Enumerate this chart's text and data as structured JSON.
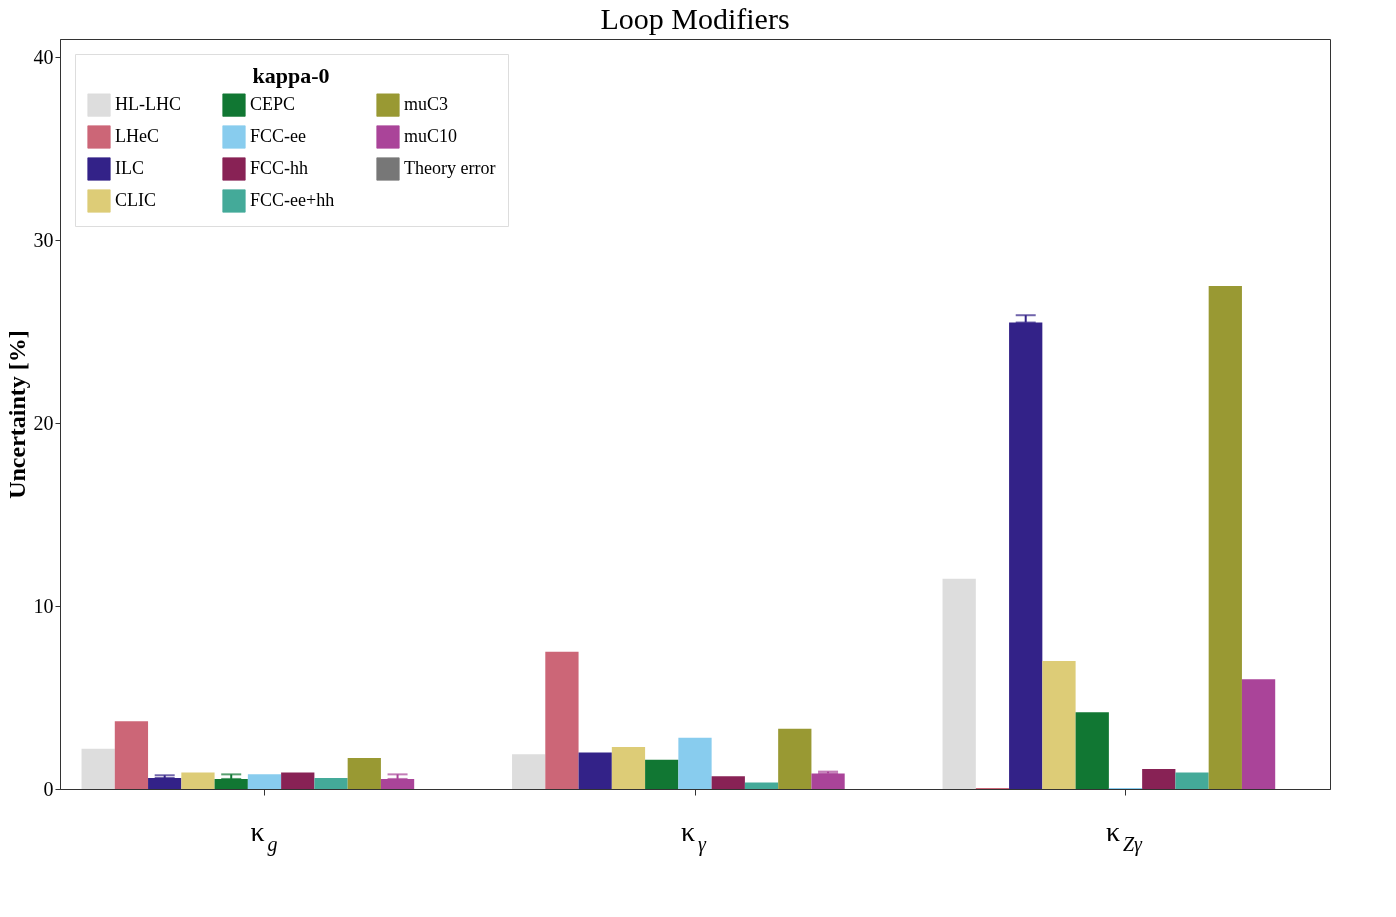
{
  "chart_data": {
    "type": "bar",
    "title": "Loop Modifiers",
    "ylabel": "Uncertainty [%]",
    "legend_title": "kappa-0",
    "legend": "top left",
    "grid": false,
    "categories": [
      "κ$_{g}$",
      "κ$_{γ}$",
      "κ$_{Zγ}$"
    ],
    "ylim": [
      0,
      41
    ],
    "yticks": [
      0,
      10,
      20,
      30,
      40
    ],
    "series": [
      {
        "name": "HL-LHC",
        "color": "#dddddd",
        "values": [
          2.2,
          1.9,
          11.5
        ]
      },
      {
        "name": "LHeC",
        "color": "#cc6677",
        "values": [
          3.7,
          7.5,
          0.05
        ]
      },
      {
        "name": "ILC",
        "color": "#332288",
        "values": [
          0.6,
          2.0,
          25.5
        ],
        "errors": [
          [
            0.6,
            0.75
          ],
          null,
          [
            25.5,
            25.9
          ]
        ]
      },
      {
        "name": "CLIC",
        "color": "#ddcc77",
        "values": [
          0.9,
          2.3,
          7.0
        ]
      },
      {
        "name": "CEPC",
        "color": "#117733",
        "values": [
          0.55,
          1.6,
          4.2
        ],
        "errors": [
          [
            0.55,
            0.8
          ],
          null,
          null
        ]
      },
      {
        "name": "FCC-ee",
        "color": "#88ccee",
        "values": [
          0.8,
          2.8,
          0.05
        ]
      },
      {
        "name": "FCC-hh",
        "color": "#882255",
        "values": [
          0.9,
          0.7,
          1.1
        ]
      },
      {
        "name": "FCC-ee+hh",
        "color": "#44aa99",
        "values": [
          0.6,
          0.35,
          0.9
        ]
      },
      {
        "name": "muC3",
        "color": "#999933",
        "values": [
          1.7,
          3.3,
          27.5
        ]
      },
      {
        "name": "muC10",
        "color": "#aa4499",
        "values": [
          0.55,
          0.85,
          6.0
        ],
        "errors": [
          [
            0.55,
            0.8
          ],
          [
            0.85,
            0.95
          ],
          null
        ]
      },
      {
        "name": "Theory error",
        "color": "#777777",
        "values": [
          null,
          null,
          null
        ]
      }
    ]
  }
}
